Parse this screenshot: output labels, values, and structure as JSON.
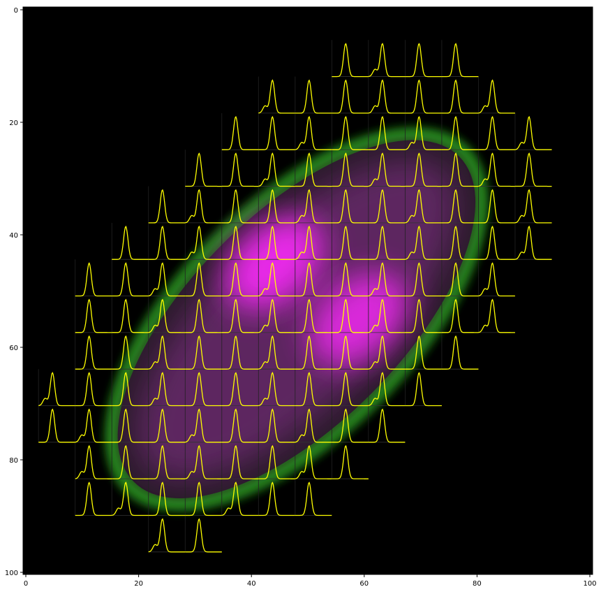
{
  "chart_data": {
    "type": "heatmap",
    "title": "",
    "xlabel": "",
    "ylabel": "",
    "xlim": [
      -0.5,
      100.5
    ],
    "ylim": [
      100.5,
      -0.5
    ],
    "y_inverted": true,
    "x_ticks": [
      0,
      20,
      40,
      60,
      80,
      100
    ],
    "y_ticks": [
      0,
      20,
      40,
      60,
      80,
      100
    ],
    "background_color": "#000000",
    "image": {
      "description_colors": {
        "edge": "#39ff2a",
        "core": "#ff2cff"
      },
      "ellipse": {
        "center_x": 48,
        "center_y": 55,
        "major_semi_axis": 42,
        "minor_semi_axis": 20,
        "angle_deg": -45
      },
      "hotspots": [
        {
          "x": 44,
          "y": 45,
          "intensity": 1.0
        },
        {
          "x": 59,
          "y": 55,
          "intensity": 0.9
        }
      ]
    },
    "spectra_overlay": {
      "color": "#ffff00",
      "grid_spacing_x": 6.5,
      "grid_spacing_y": 6.5,
      "rows": [
        {
          "y": 11.5,
          "x_centers": [
            57.5,
            64.0,
            70.5,
            77.0
          ]
        },
        {
          "y": 18.0,
          "x_centers": [
            44.5,
            51.0,
            57.5,
            64.0,
            70.5,
            77.0,
            83.5
          ]
        },
        {
          "y": 24.5,
          "x_centers": [
            38.0,
            44.5,
            51.0,
            57.5,
            64.0,
            70.5,
            77.0,
            83.5,
            90.0
          ]
        },
        {
          "y": 31.0,
          "x_centers": [
            31.5,
            38.0,
            44.5,
            51.0,
            57.5,
            64.0,
            70.5,
            77.0,
            83.5,
            90.0
          ]
        },
        {
          "y": 37.5,
          "x_centers": [
            25.0,
            31.5,
            38.0,
            44.5,
            51.0,
            57.5,
            64.0,
            70.5,
            77.0,
            83.5,
            90.0
          ]
        },
        {
          "y": 44.0,
          "x_centers": [
            18.5,
            25.0,
            31.5,
            38.0,
            44.5,
            51.0,
            57.5,
            64.0,
            70.5,
            77.0,
            83.5,
            90.0
          ]
        },
        {
          "y": 50.5,
          "x_centers": [
            12.0,
            18.5,
            25.0,
            31.5,
            38.0,
            44.5,
            51.0,
            57.5,
            64.0,
            70.5,
            77.0,
            83.5
          ]
        },
        {
          "y": 57.0,
          "x_centers": [
            12.0,
            18.5,
            25.0,
            31.5,
            38.0,
            44.5,
            51.0,
            57.5,
            64.0,
            70.5,
            77.0,
            83.5
          ]
        },
        {
          "y": 63.5,
          "x_centers": [
            12.0,
            18.5,
            25.0,
            31.5,
            38.0,
            44.5,
            51.0,
            57.5,
            64.0,
            70.5,
            77.0
          ]
        },
        {
          "y": 70.0,
          "x_centers": [
            5.5,
            12.0,
            18.5,
            25.0,
            31.5,
            38.0,
            44.5,
            51.0,
            57.5,
            64.0,
            70.5
          ]
        },
        {
          "y": 76.5,
          "x_centers": [
            5.5,
            12.0,
            18.5,
            25.0,
            31.5,
            38.0,
            44.5,
            51.0,
            57.5,
            64.0
          ]
        },
        {
          "y": 83.0,
          "x_centers": [
            12.0,
            18.5,
            25.0,
            31.5,
            38.0,
            44.5,
            51.0,
            57.5
          ]
        },
        {
          "y": 89.5,
          "x_centers": [
            12.0,
            18.5,
            25.0,
            31.5,
            38.0,
            44.5,
            51.0
          ]
        },
        {
          "y": 96.0,
          "x_centers": [
            25.0,
            31.5
          ]
        }
      ]
    }
  }
}
